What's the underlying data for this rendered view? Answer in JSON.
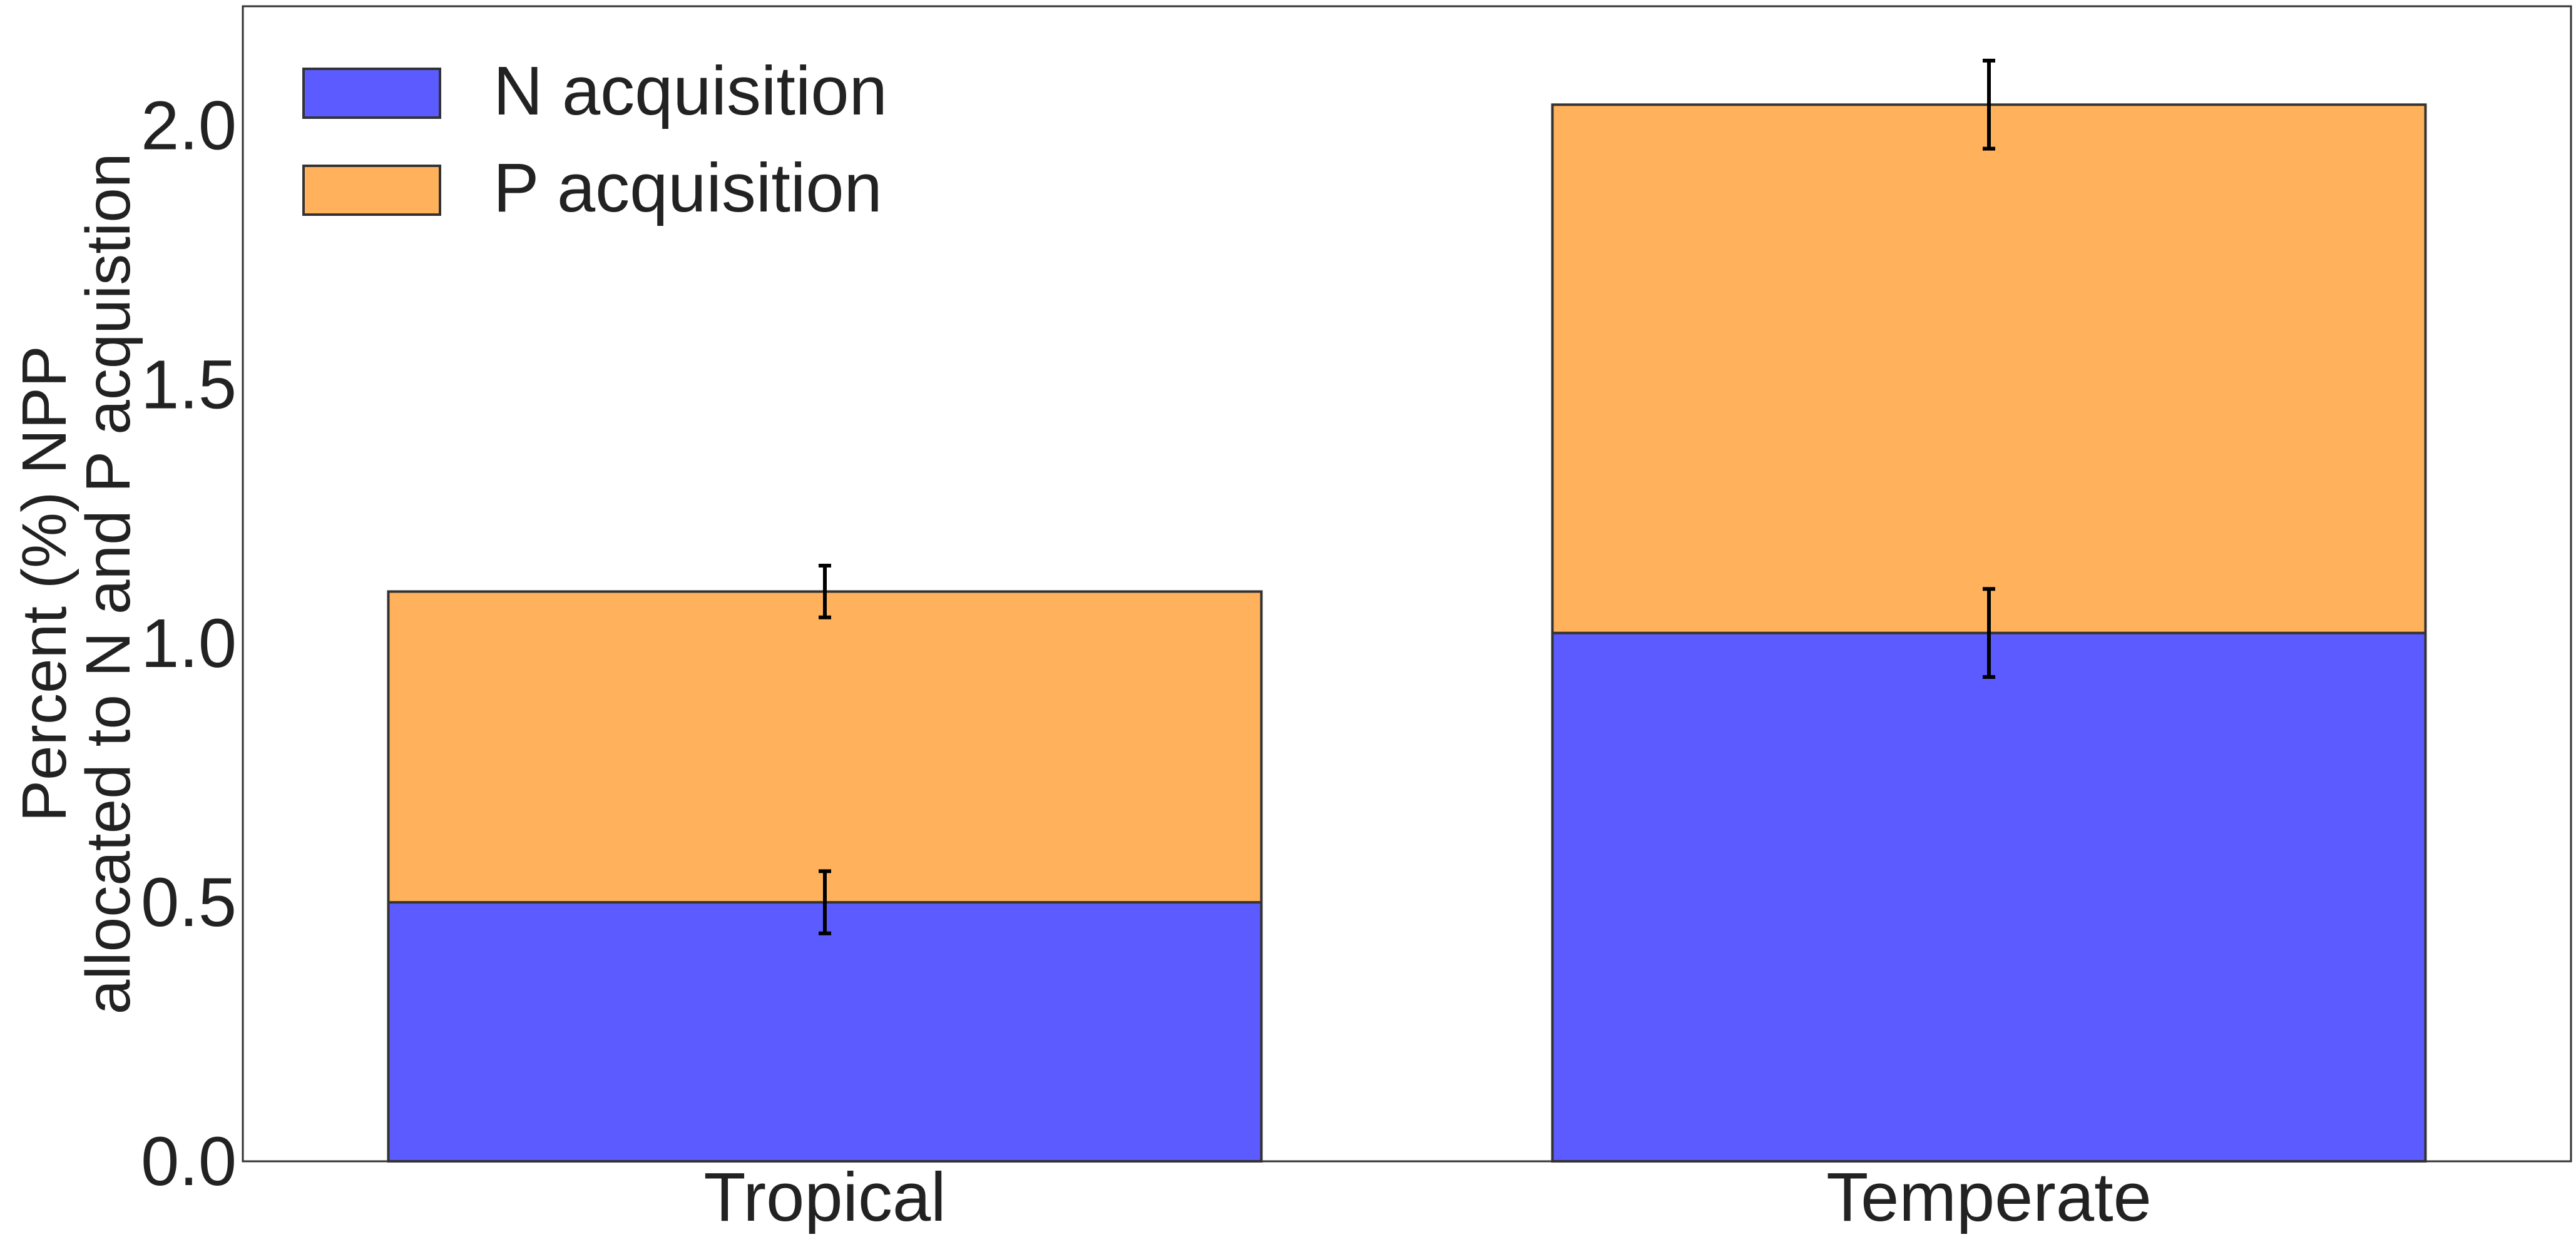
{
  "chart_data": {
    "type": "bar",
    "stacked": true,
    "categories": [
      "Tropical",
      "Temperate"
    ],
    "series": [
      {
        "name": "N acquisition",
        "color": "#5b5bff",
        "values": [
          0.5,
          1.02
        ],
        "errors": [
          0.06,
          0.085
        ]
      },
      {
        "name": "P acquisition",
        "color": "#ffb25b",
        "values": [
          0.6,
          1.02
        ],
        "errors": [
          0.05,
          0.085
        ]
      }
    ],
    "ylabel_lines": [
      "Percent (%) NPP",
      "allocated to N and P acquistion"
    ],
    "yticks": [
      "0.0",
      "0.5",
      "1.0",
      "1.5",
      "2.0"
    ],
    "ylim": [
      0,
      2.23
    ],
    "grid": false,
    "legend_position": "top-left"
  }
}
